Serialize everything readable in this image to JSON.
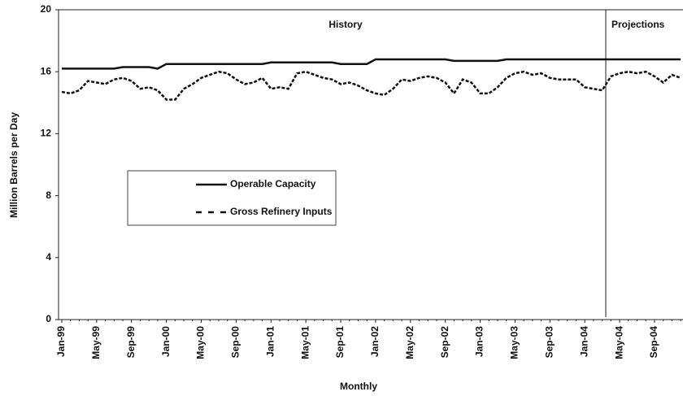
{
  "chart_data": {
    "type": "line",
    "y_label": "Million Barrels per Day",
    "x_label": "Monthly",
    "annotations": [
      "History",
      "Projections"
    ],
    "categories": [
      "Jan-99",
      null,
      null,
      null,
      "May-99",
      null,
      null,
      null,
      "Sep-99",
      null,
      null,
      null,
      "Jan-00",
      null,
      null,
      null,
      "May-00",
      null,
      null,
      null,
      "Sep-00",
      null,
      null,
      null,
      "Jan-01",
      null,
      null,
      null,
      "May-01",
      null,
      null,
      null,
      "Sep-01",
      null,
      null,
      null,
      "Jan-02",
      null,
      null,
      null,
      "May-02",
      null,
      null,
      null,
      "Sep-02",
      null,
      null,
      null,
      "Jan-03",
      null,
      null,
      null,
      "May-03",
      null,
      null,
      null,
      "Sep-03",
      null,
      null,
      null,
      "Jan-04",
      null,
      null,
      null,
      "May-04",
      null,
      null,
      null,
      "Sep-04",
      null,
      null,
      null
    ],
    "series": [
      {
        "name": "Operable Capacity",
        "color": "#111111",
        "dash": "solid",
        "values": [
          16.2,
          16.2,
          16.2,
          16.2,
          16.2,
          16.2,
          16.2,
          16.3,
          16.3,
          16.3,
          16.3,
          16.2,
          16.5,
          16.5,
          16.5,
          16.5,
          16.5,
          16.5,
          16.5,
          16.5,
          16.5,
          16.5,
          16.5,
          16.5,
          16.6,
          16.6,
          16.6,
          16.6,
          16.6,
          16.6,
          16.6,
          16.6,
          16.5,
          16.5,
          16.5,
          16.5,
          16.8,
          16.8,
          16.8,
          16.8,
          16.8,
          16.8,
          16.8,
          16.8,
          16.8,
          16.7,
          16.7,
          16.7,
          16.7,
          16.7,
          16.7,
          16.8,
          16.8,
          16.8,
          16.8,
          16.8,
          16.8,
          16.8,
          16.8,
          16.8,
          16.8,
          16.8,
          16.8,
          16.8,
          16.8,
          16.8,
          16.8,
          16.8,
          16.8,
          16.8,
          16.8,
          16.8
        ]
      },
      {
        "name": "Gross Refinery Inputs",
        "color": "#111111",
        "dash": "dashed",
        "values": [
          14.7,
          14.6,
          14.8,
          15.4,
          15.3,
          15.2,
          15.5,
          15.6,
          15.4,
          14.9,
          15.0,
          14.8,
          14.2,
          14.2,
          14.9,
          15.2,
          15.6,
          15.8,
          16.0,
          15.9,
          15.5,
          15.2,
          15.3,
          15.6,
          14.9,
          15.0,
          14.9,
          15.9,
          16.0,
          15.8,
          15.6,
          15.5,
          15.2,
          15.3,
          15.1,
          14.8,
          14.6,
          14.5,
          14.9,
          15.5,
          15.4,
          15.6,
          15.7,
          15.6,
          15.3,
          14.6,
          15.5,
          15.3,
          14.6,
          14.6,
          15.0,
          15.6,
          15.9,
          16.0,
          15.8,
          15.9,
          15.6,
          15.5,
          15.5,
          15.5,
          15.0,
          14.9,
          14.8,
          15.7,
          15.9,
          16.0,
          15.9,
          16.0,
          15.7,
          15.3,
          15.8,
          15.6
        ]
      }
    ],
    "ylim": [
      0,
      20
    ],
    "yticks": [
      0,
      4,
      8,
      12,
      16,
      20
    ],
    "grid": false
  }
}
